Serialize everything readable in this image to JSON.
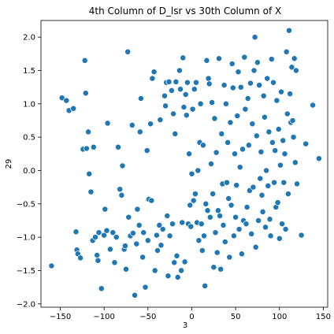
{
  "chart_data": {
    "type": "scatter",
    "title": "4th Column of D_lsr vs 30th Column of X",
    "xlabel": "3",
    "ylabel": "29",
    "xlim": [
      -172,
      155
    ],
    "ylim": [
      -2.05,
      2.25
    ],
    "xticks": [
      -150,
      -100,
      -50,
      0,
      50,
      100,
      150
    ],
    "yticks": [
      -2.0,
      -1.5,
      -1.0,
      -0.5,
      0.0,
      0.5,
      1.0,
      1.5,
      2.0
    ],
    "grid": false,
    "color": "#1f77b4",
    "points": [
      [
        -160,
        -1.43
      ],
      [
        -148,
        1.09
      ],
      [
        -143,
        1.05
      ],
      [
        -140,
        0.9
      ],
      [
        -135,
        0.93
      ],
      [
        -132,
        -0.92
      ],
      [
        -131,
        -1.19
      ],
      [
        -130,
        -1.25
      ],
      [
        -127,
        -1.31
      ],
      [
        -124,
        0.32
      ],
      [
        -122,
        1.65
      ],
      [
        -121,
        1.16
      ],
      [
        -120,
        0.33
      ],
      [
        -118,
        0.58
      ],
      [
        -117,
        -0.05
      ],
      [
        -115,
        -0.32
      ],
      [
        -113,
        -1.05
      ],
      [
        -112,
        0.35
      ],
      [
        -110,
        -1.0
      ],
      [
        -108,
        -1.27
      ],
      [
        -107,
        -1.35
      ],
      [
        -106,
        -0.93
      ],
      [
        -103,
        -1.77
      ],
      [
        -100,
        -0.97
      ],
      [
        -99,
        -0.58
      ],
      [
        -97,
        -0.9
      ],
      [
        -96,
        0.71
      ],
      [
        -93,
        -1.18
      ],
      [
        -90,
        -0.93
      ],
      [
        -88,
        -1.38
      ],
      [
        -86,
        -1.0
      ],
      [
        -84,
        0.35
      ],
      [
        -82,
        -0.28
      ],
      [
        -80,
        -0.37
      ],
      [
        -79,
        0.07
      ],
      [
        -77,
        -1.18
      ],
      [
        -76,
        -1.13
      ],
      [
        -75,
        -1.48
      ],
      [
        -73,
        1.78
      ],
      [
        -72,
        -0.7
      ],
      [
        -70,
        -0.98
      ],
      [
        -68,
        0.68
      ],
      [
        -67,
        -0.94
      ],
      [
        -65,
        -1.87
      ],
      [
        -63,
        -1.1
      ],
      [
        -62,
        -0.58
      ],
      [
        -60,
        -0.82
      ],
      [
        -59,
        0.58
      ],
      [
        -58,
        1.08
      ],
      [
        -56,
        -1.3
      ],
      [
        -55,
        -0.93
      ],
      [
        -53,
        -1.75
      ],
      [
        -51,
        0.3
      ],
      [
        -50,
        -1.05
      ],
      [
        -49,
        -0.43
      ],
      [
        -47,
        0.7
      ],
      [
        -46,
        -0.45
      ],
      [
        -45,
        1.38
      ],
      [
        -43,
        1.48
      ],
      [
        -42,
        -1.5
      ],
      [
        -40,
        -0.97
      ],
      [
        -39,
        -1.2
      ],
      [
        -37,
        -0.82
      ],
      [
        -36,
        0.76
      ],
      [
        -35,
        -1.12
      ],
      [
        -33,
        -0.88
      ],
      [
        -31,
        1.12
      ],
      [
        -30,
        0.97
      ],
      [
        -29,
        1.32
      ],
      [
        -28,
        -0.68
      ],
      [
        -27,
        -1.58
      ],
      [
        -26,
        1.33
      ],
      [
        -25,
        -0.98
      ],
      [
        -23,
        1.2
      ],
      [
        -22,
        -0.8
      ],
      [
        -21,
        0.85
      ],
      [
        -20,
        -1.38
      ],
      [
        -19,
        0.55
      ],
      [
        -18,
        1.33
      ],
      [
        -17,
        -1.28
      ],
      [
        -16,
        -1.6
      ],
      [
        -14,
        1.5
      ],
      [
        -13,
        1.22
      ],
      [
        -12,
        -1.5
      ],
      [
        -11,
        -0.78
      ],
      [
        -10,
        1.69
      ],
      [
        -9,
        0.95
      ],
      [
        -8,
        -1.37
      ],
      [
        -7,
        1.14
      ],
      [
        -6,
        0.83
      ],
      [
        -5,
        1.32
      ],
      [
        -4,
        -0.8
      ],
      [
        -3,
        0.25
      ],
      [
        -2,
        -0.52
      ],
      [
        -1,
        -0.84
      ],
      [
        0,
        -0.05
      ],
      [
        1,
        0.92
      ],
      [
        2,
        -0.45
      ],
      [
        3,
        1.22
      ],
      [
        4,
        -0.35
      ],
      [
        5,
        1.32
      ],
      [
        6,
        -0.78
      ],
      [
        7,
        0.0
      ],
      [
        8,
        -1.05
      ],
      [
        9,
        0.42
      ],
      [
        10,
        1.0
      ],
      [
        11,
        -0.8
      ],
      [
        12,
        -1.2
      ],
      [
        13,
        0.38
      ],
      [
        14,
        -0.98
      ],
      [
        15,
        -1.73
      ],
      [
        16,
        -0.5
      ],
      [
        17,
        1.65
      ],
      [
        18,
        -0.6
      ],
      [
        19,
        1.38
      ],
      [
        20,
        1.3
      ],
      [
        21,
        -0.7
      ],
      [
        22,
        0.1
      ],
      [
        23,
        1.02
      ],
      [
        24,
        -0.35
      ],
      [
        25,
        -1.45
      ],
      [
        26,
        0.78
      ],
      [
        27,
        -0.93
      ],
      [
        28,
        0.27
      ],
      [
        29,
        -1.23
      ],
      [
        30,
        -0.6
      ],
      [
        31,
        1.68
      ],
      [
        32,
        -0.68
      ],
      [
        33,
        -1.48
      ],
      [
        34,
        0.55
      ],
      [
        35,
        -0.2
      ],
      [
        36,
        -0.82
      ],
      [
        37,
        1.28
      ],
      [
        38,
        -1.07
      ],
      [
        39,
        1.0
      ],
      [
        40,
        -0.18
      ],
      [
        41,
        0.42
      ],
      [
        42,
        -0.42
      ],
      [
        43,
        -1.3
      ],
      [
        44,
        0.72
      ],
      [
        45,
        -0.52
      ],
      [
        46,
        1.6
      ],
      [
        47,
        1.24
      ],
      [
        48,
        -0.98
      ],
      [
        49,
        0.25
      ],
      [
        50,
        -0.7
      ],
      [
        51,
        -0.22
      ],
      [
        52,
        0.82
      ],
      [
        53,
        1.48
      ],
      [
        54,
        -0.88
      ],
      [
        55,
        0.05
      ],
      [
        56,
        1.25
      ],
      [
        57,
        -1.25
      ],
      [
        58,
        0.32
      ],
      [
        59,
        -0.75
      ],
      [
        60,
        1.7
      ],
      [
        61,
        0.92
      ],
      [
        62,
        -0.8
      ],
      [
        63,
        -0.55
      ],
      [
        64,
        1.08
      ],
      [
        65,
        0.38
      ],
      [
        66,
        -0.3
      ],
      [
        67,
        1.31
      ],
      [
        68,
        -0.95
      ],
      [
        69,
        0.7
      ],
      [
        70,
        -0.25
      ],
      [
        71,
        1.5
      ],
      [
        72,
        2.0
      ],
      [
        73,
        -1.15
      ],
      [
        74,
        0.52
      ],
      [
        75,
        1.62
      ],
      [
        76,
        -0.75
      ],
      [
        77,
        1.28
      ],
      [
        78,
        -0.12
      ],
      [
        79,
        0.28
      ],
      [
        80,
        -0.37
      ],
      [
        81,
        -0.62
      ],
      [
        82,
        1.12
      ],
      [
        83,
        0.8
      ],
      [
        84,
        -0.85
      ],
      [
        85,
        0.0
      ],
      [
        86,
        1.38
      ],
      [
        87,
        -0.23
      ],
      [
        88,
        0.58
      ],
      [
        89,
        -0.73
      ],
      [
        90,
        -0.98
      ],
      [
        91,
        1.67
      ],
      [
        92,
        0.42
      ],
      [
        93,
        1.32
      ],
      [
        94,
        -0.18
      ],
      [
        95,
        0.3
      ],
      [
        96,
        -0.55
      ],
      [
        97,
        1.05
      ],
      [
        98,
        -0.48
      ],
      [
        99,
        0.62
      ],
      [
        100,
        -1.02
      ],
      [
        101,
        0.08
      ],
      [
        102,
        1.18
      ],
      [
        103,
        -0.8
      ],
      [
        104,
        0.45
      ],
      [
        105,
        -0.18
      ],
      [
        106,
        0.25
      ],
      [
        107,
        -0.88
      ],
      [
        108,
        1.78
      ],
      [
        109,
        0.85
      ],
      [
        110,
        -0.35
      ],
      [
        111,
        2.1
      ],
      [
        112,
        1.15
      ],
      [
        113,
        0.72
      ],
      [
        114,
        1.55
      ],
      [
        115,
        0.75
      ],
      [
        116,
        0.5
      ],
      [
        117,
        1.68
      ],
      [
        118,
        0.12
      ],
      [
        119,
        1.5
      ],
      [
        120,
        -0.2
      ],
      [
        125,
        -0.97
      ],
      [
        130,
        0.4
      ],
      [
        138,
        0.98
      ],
      [
        145,
        0.18
      ]
    ]
  }
}
